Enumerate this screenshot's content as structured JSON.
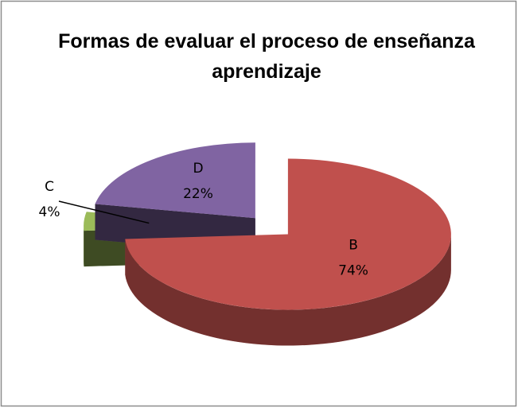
{
  "chart_data": {
    "type": "pie",
    "title": "Formas de evaluar el proceso de enseñanza aprendizaje",
    "categories": [
      "B",
      "C",
      "D"
    ],
    "values": [
      74,
      4,
      22
    ],
    "value_labels": [
      "74%",
      "4%",
      "22%"
    ],
    "colors": [
      "#c0504d",
      "#9bbb59",
      "#8064a2"
    ]
  }
}
